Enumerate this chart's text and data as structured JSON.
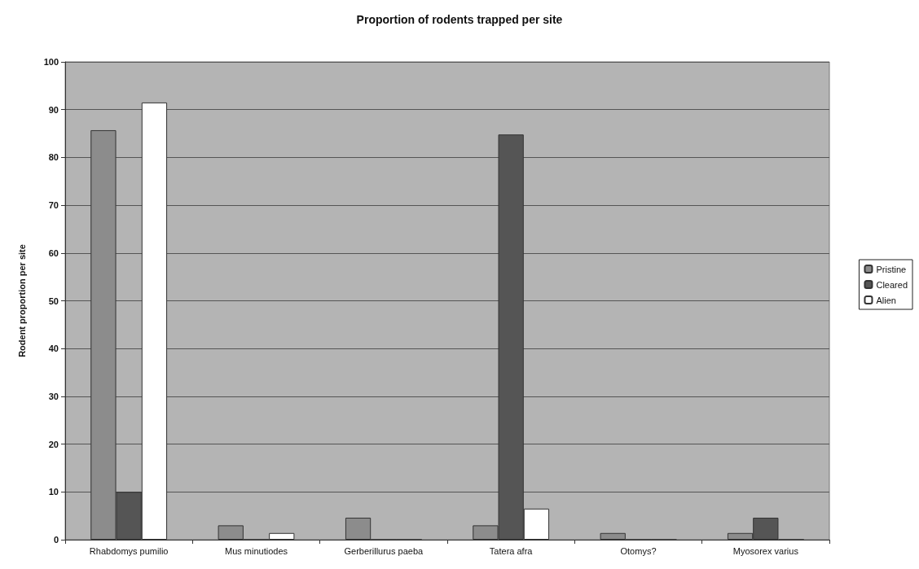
{
  "chart_data": {
    "type": "bar",
    "title": "Proportion of rodents trapped per site",
    "ylabel": "Rodent proportion per site",
    "categories": [
      "Rhabdomys pumilio",
      "Mus minutiodes",
      "Gerberillurus paeba",
      "Tatera afra",
      "Otomys?",
      "Myosorex varius"
    ],
    "series": [
      {
        "name": "Pristine",
        "color": "#8c8c8c",
        "values": [
          85.7,
          3,
          4.6,
          3,
          1.4,
          1.4
        ]
      },
      {
        "name": "Cleared",
        "color": "#555555",
        "values": [
          10,
          0,
          0,
          84.8,
          0,
          4.6
        ]
      },
      {
        "name": "Alien",
        "color": "#ffffff",
        "values": [
          91.5,
          1.4,
          0,
          6.5,
          0,
          0
        ]
      }
    ],
    "ylim": [
      0,
      100
    ],
    "yticks": [
      0,
      10,
      20,
      30,
      40,
      50,
      60,
      70,
      80,
      90,
      100
    ],
    "grid": "y",
    "legend": "right"
  }
}
